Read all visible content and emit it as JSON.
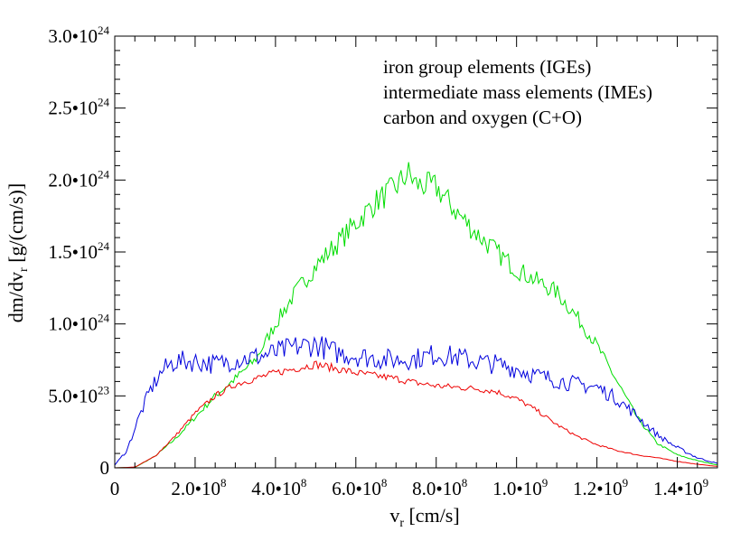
{
  "chart_data": {
    "type": "line",
    "xlabel": "v",
    "xlabel_sub": "r",
    "xlabel_units": " [cm/s]",
    "ylabel": "dm/dv",
    "ylabel_sub": "r",
    "ylabel_units": " [g/(cm/s)]",
    "xlim": [
      0,
      1500000000.0
    ],
    "ylim": [
      0,
      3e+24
    ],
    "x_ticks": [
      {
        "value": 0,
        "mant": "0",
        "exp": ""
      },
      {
        "value": 200000000.0,
        "mant": "2.0•10",
        "exp": "8"
      },
      {
        "value": 400000000.0,
        "mant": "4.0•10",
        "exp": "8"
      },
      {
        "value": 600000000.0,
        "mant": "6.0•10",
        "exp": "8"
      },
      {
        "value": 800000000.0,
        "mant": "8.0•10",
        "exp": "8"
      },
      {
        "value": 1000000000.0,
        "mant": "1.0•10",
        "exp": "9"
      },
      {
        "value": 1200000000.0,
        "mant": "1.2•10",
        "exp": "9"
      },
      {
        "value": 1400000000.0,
        "mant": "1.4•10",
        "exp": "9"
      }
    ],
    "y_ticks": [
      {
        "value": 0,
        "mant": "0",
        "exp": ""
      },
      {
        "value": 5e+23,
        "mant": "5.0•10",
        "exp": "23"
      },
      {
        "value": 1e+24,
        "mant": "1.0•10",
        "exp": "24"
      },
      {
        "value": 1.5e+24,
        "mant": "1.5•10",
        "exp": "24"
      },
      {
        "value": 2e+24,
        "mant": "2.0•10",
        "exp": "24"
      },
      {
        "value": 2.5e+24,
        "mant": "2.5•10",
        "exp": "24"
      },
      {
        "value": 3e+24,
        "mant": "3.0•10",
        "exp": "24"
      }
    ],
    "grid": false,
    "legend_position": "top-right",
    "series": [
      {
        "name": "iron group elements  (IGEs)",
        "color": "#00dd00",
        "x": [
          0,
          50000000.0,
          100000000.0,
          150000000.0,
          200000000.0,
          250000000.0,
          300000000.0,
          350000000.0,
          400000000.0,
          450000000.0,
          500000000.0,
          550000000.0,
          600000000.0,
          650000000.0,
          700000000.0,
          730000000.0,
          750000000.0,
          800000000.0,
          850000000.0,
          900000000.0,
          950000000.0,
          1000000000.0,
          1050000000.0,
          1100000000.0,
          1150000000.0,
          1200000000.0,
          1250000000.0,
          1300000000.0,
          1350000000.0,
          1400000000.0,
          1450000000.0,
          1500000000.0
        ],
        "y": [
          0,
          3e+21,
          8e+22,
          2e+23,
          3.5e+23,
          5e+23,
          6.2e+23,
          7.5e+23,
          1e+24,
          1.22e+24,
          1.4e+24,
          1.55e+24,
          1.7e+24,
          1.85e+24,
          1.95e+24,
          2.05e+24,
          1.97e+24,
          1.95e+24,
          1.78e+24,
          1.63e+24,
          1.5e+24,
          1.38e+24,
          1.3e+24,
          1.22e+24,
          1.05e+24,
          8.5e+23,
          6e+23,
          3.5e+23,
          1.7e+23,
          9e+22,
          5e+22,
          2e+22
        ]
      },
      {
        "name": "intermediate mass elements  (IMEs)",
        "color": "#ee0000",
        "x": [
          0,
          50000000.0,
          100000000.0,
          150000000.0,
          200000000.0,
          250000000.0,
          300000000.0,
          350000000.0,
          400000000.0,
          450000000.0,
          500000000.0,
          550000000.0,
          600000000.0,
          650000000.0,
          700000000.0,
          750000000.0,
          800000000.0,
          850000000.0,
          900000000.0,
          950000000.0,
          1000000000.0,
          1050000000.0,
          1100000000.0,
          1150000000.0,
          1200000000.0,
          1250000000.0,
          1300000000.0,
          1350000000.0,
          1400000000.0,
          1450000000.0,
          1500000000.0
        ],
        "y": [
          0,
          5e+21,
          8e+22,
          2.2e+23,
          3.8e+23,
          5e+23,
          5.8e+23,
          6.2e+23,
          6.6e+23,
          6.9e+23,
          7.2e+23,
          6.9e+23,
          6.6e+23,
          6.4e+23,
          6.2e+23,
          5.9e+23,
          5.7e+23,
          5.6e+23,
          5.5e+23,
          5.3e+23,
          4.8e+23,
          4e+23,
          3e+23,
          2.2e+23,
          1.6e+23,
          1.2e+23,
          9e+22,
          7e+22,
          4.5e+22,
          2.5e+22,
          1e+22
        ]
      },
      {
        "name": "carbon and oxygen  (C+O)",
        "color": "#0000dd",
        "x": [
          0,
          30000000.0,
          60000000.0,
          90000000.0,
          120000000.0,
          150000000.0,
          200000000.0,
          250000000.0,
          300000000.0,
          350000000.0,
          400000000.0,
          450000000.0,
          500000000.0,
          550000000.0,
          600000000.0,
          650000000.0,
          700000000.0,
          750000000.0,
          800000000.0,
          850000000.0,
          900000000.0,
          950000000.0,
          1000000000.0,
          1050000000.0,
          1100000000.0,
          1150000000.0,
          1200000000.0,
          1250000000.0,
          1300000000.0,
          1350000000.0,
          1400000000.0,
          1450000000.0,
          1500000000.0
        ],
        "y": [
          2e+22,
          1.2e+23,
          3.5e+23,
          5.5e+23,
          6.8e+23,
          7.4e+23,
          7.4e+23,
          7.2e+23,
          7.5e+23,
          7.7e+23,
          8e+23,
          8.4e+23,
          8.6e+23,
          8e+23,
          7.8e+23,
          7.6e+23,
          7.5e+23,
          7.6e+23,
          7.9e+23,
          7.7e+23,
          7.4e+23,
          7.2e+23,
          6.9e+23,
          6.4e+23,
          6.1e+23,
          5.8e+23,
          5.6e+23,
          4.8e+23,
          3.6e+23,
          2.3e+23,
          1.4e+23,
          7e+22,
          3e+22
        ]
      }
    ]
  }
}
